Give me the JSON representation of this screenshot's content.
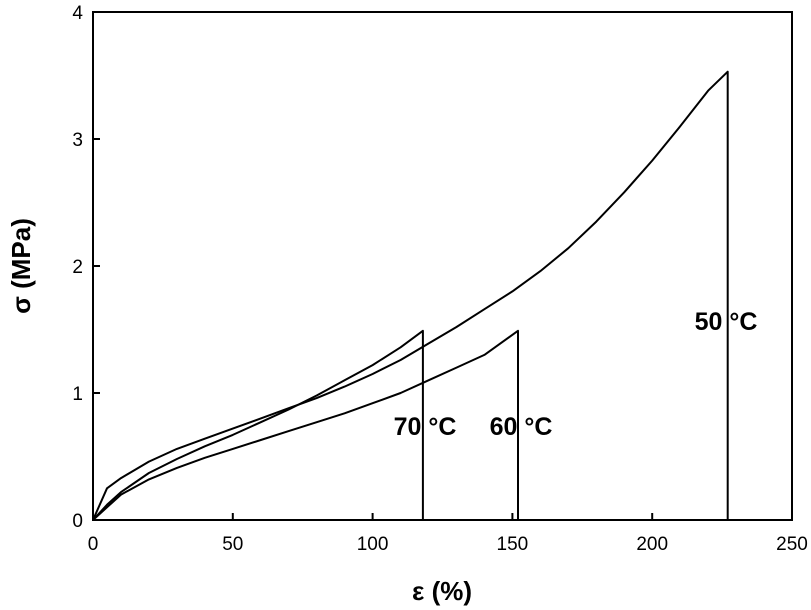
{
  "chart_data": {
    "type": "line",
    "xlabel": "ε (%)",
    "ylabel": "σ (MPa)",
    "xlim": [
      0,
      250
    ],
    "ylim": [
      0,
      4
    ],
    "x_ticks": [
      "0",
      "50",
      "100",
      "150",
      "200",
      "250"
    ],
    "y_ticks": [
      "0",
      "1",
      "2",
      "3",
      "4"
    ],
    "grid": false,
    "legend": "none",
    "series": [
      {
        "annotation": "50 °C",
        "x": [
          0,
          5,
          10,
          20,
          30,
          40,
          50,
          60,
          70,
          80,
          90,
          100,
          110,
          120,
          130,
          140,
          150,
          160,
          170,
          180,
          190,
          200,
          210,
          220,
          227,
          227
        ],
        "y": [
          0,
          0.25,
          0.33,
          0.46,
          0.56,
          0.64,
          0.72,
          0.8,
          0.88,
          0.96,
          1.05,
          1.15,
          1.26,
          1.39,
          1.52,
          1.66,
          1.8,
          1.96,
          2.14,
          2.35,
          2.58,
          2.83,
          3.1,
          3.38,
          3.53,
          0
        ]
      },
      {
        "annotation": "60 °C",
        "x": [
          0,
          5,
          10,
          20,
          30,
          40,
          50,
          60,
          70,
          80,
          90,
          100,
          110,
          120,
          130,
          140,
          152,
          152
        ],
        "y": [
          0,
          0.1,
          0.2,
          0.32,
          0.41,
          0.49,
          0.56,
          0.63,
          0.7,
          0.77,
          0.84,
          0.92,
          1.0,
          1.1,
          1.2,
          1.3,
          1.49,
          0
        ]
      },
      {
        "annotation": "70 °C",
        "x": [
          0,
          5,
          10,
          20,
          30,
          40,
          50,
          60,
          70,
          80,
          90,
          100,
          110,
          118,
          118
        ],
        "y": [
          0,
          0.12,
          0.22,
          0.37,
          0.48,
          0.58,
          0.67,
          0.77,
          0.87,
          0.98,
          1.1,
          1.22,
          1.36,
          1.49,
          0
        ]
      }
    ],
    "annotations": {
      "a50": "50 °C",
      "a60": "60 °C",
      "a70": "70 °C"
    }
  }
}
